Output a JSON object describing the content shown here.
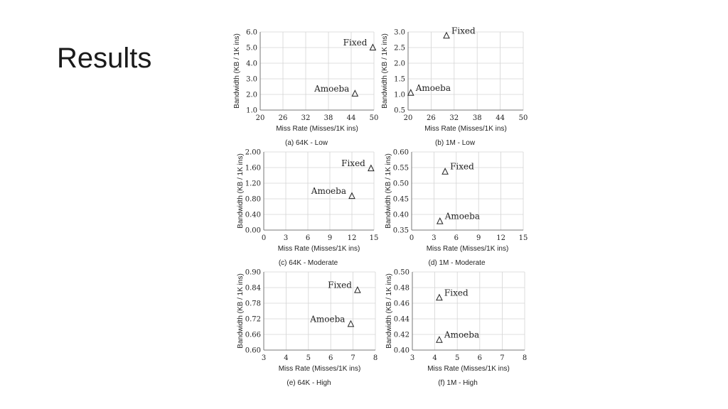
{
  "slide": {
    "title": "Results"
  },
  "chart_data": [
    {
      "type": "scatter",
      "title": "",
      "caption": "(a) 64K - Low",
      "xlabel": "Miss Rate (Misses/1K ins)",
      "ylabel": "Bandwidth (KB / 1K ins)",
      "xlim": [
        20,
        50
      ],
      "ylim": [
        1.0,
        6.0
      ],
      "xticks": [
        "20",
        "26",
        "32",
        "38",
        "44",
        "50"
      ],
      "yticks": [
        "1.0",
        "2.0",
        "3.0",
        "4.0",
        "5.0",
        "6.0"
      ],
      "grid": true,
      "points": [
        {
          "label": "Fixed",
          "x": 49.7,
          "y": 5.0,
          "label_side": "left"
        },
        {
          "label": "Amoeba",
          "x": 45.0,
          "y": 2.05,
          "label_side": "left"
        }
      ]
    },
    {
      "type": "scatter",
      "title": "",
      "caption": "(b) 1M - Low",
      "xlabel": "Miss Rate (Misses/1K ins)",
      "ylabel": "Bandwidth (KB / 1K ins)",
      "xlim": [
        20,
        50
      ],
      "ylim": [
        0.5,
        3.0
      ],
      "xticks": [
        "20",
        "26",
        "32",
        "38",
        "44",
        "50"
      ],
      "yticks": [
        "0.5",
        "1.0",
        "1.5",
        "2.0",
        "2.5",
        "3.0"
      ],
      "grid": true,
      "points": [
        {
          "label": "Fixed",
          "x": 30.0,
          "y": 2.88,
          "label_side": "right"
        },
        {
          "label": "Amoeba",
          "x": 20.7,
          "y": 1.05,
          "label_side": "right"
        }
      ]
    },
    {
      "type": "scatter",
      "title": "",
      "caption": "(c) 64K - Moderate",
      "xlabel": "Miss Rate (Misses/1K ins)",
      "ylabel": "Bandwidth (KB / 1K ins)",
      "xlim": [
        0,
        15
      ],
      "ylim": [
        0.0,
        2.0
      ],
      "xticks": [
        "0",
        "3",
        "6",
        "9",
        "12",
        "15"
      ],
      "yticks": [
        "0.00",
        "0.40",
        "0.80",
        "1.20",
        "1.60",
        "2.00"
      ],
      "grid": true,
      "points": [
        {
          "label": "Fixed",
          "x": 14.6,
          "y": 1.58,
          "label_side": "left"
        },
        {
          "label": "Amoeba",
          "x": 12.0,
          "y": 0.87,
          "label_side": "left"
        }
      ]
    },
    {
      "type": "scatter",
      "title": "",
      "caption": "(d) 1M - Moderate",
      "xlabel": "Miss Rate (Misses/1K ins)",
      "ylabel": "Bandwidth (KB / 1K ins)",
      "xlim": [
        0,
        15
      ],
      "ylim": [
        0.35,
        0.6
      ],
      "xticks": [
        "0",
        "3",
        "6",
        "9",
        "12",
        "15"
      ],
      "yticks": [
        "0.35",
        "0.40",
        "0.45",
        "0.50",
        "0.55",
        "0.60"
      ],
      "grid": true,
      "points": [
        {
          "label": "Fixed",
          "x": 4.5,
          "y": 0.537,
          "label_side": "right"
        },
        {
          "label": "Amoeba",
          "x": 3.8,
          "y": 0.378,
          "label_side": "right"
        }
      ]
    },
    {
      "type": "scatter",
      "title": "",
      "caption": "(e) 64K - High",
      "xlabel": "Miss Rate (Misses/1K ins)",
      "ylabel": "Bandwidth (KB / 1K ins)",
      "xlim": [
        3,
        8
      ],
      "ylim": [
        0.6,
        0.9
      ],
      "xticks": [
        "3",
        "4",
        "5",
        "6",
        "7",
        "8"
      ],
      "yticks": [
        "0.60",
        "0.66",
        "0.72",
        "0.78",
        "0.84",
        "0.90"
      ],
      "grid": true,
      "points": [
        {
          "label": "Fixed",
          "x": 7.2,
          "y": 0.83,
          "label_side": "left"
        },
        {
          "label": "Amoeba",
          "x": 6.9,
          "y": 0.7,
          "label_side": "left"
        }
      ]
    },
    {
      "type": "scatter",
      "title": "",
      "caption": "(f) 1M - High",
      "xlabel": "Miss Rate (Misses/1K ins)",
      "ylabel": "Bandwidth (KB / 1K ins)",
      "xlim": [
        3,
        8
      ],
      "ylim": [
        0.4,
        0.5
      ],
      "xticks": [
        "3",
        "4",
        "5",
        "6",
        "7",
        "8"
      ],
      "yticks": [
        "0.40",
        "0.42",
        "0.44",
        "0.46",
        "0.48",
        "0.50"
      ],
      "grid": true,
      "points": [
        {
          "label": "Fixed",
          "x": 4.2,
          "y": 0.467,
          "label_side": "right"
        },
        {
          "label": "Amoeba",
          "x": 4.2,
          "y": 0.413,
          "label_side": "right"
        }
      ]
    }
  ]
}
